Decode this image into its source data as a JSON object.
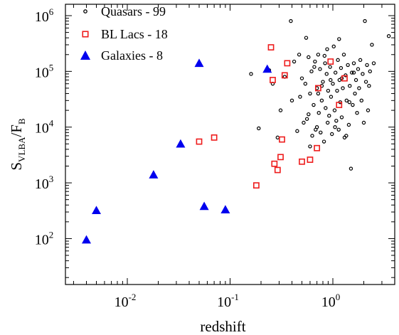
{
  "chart_data": {
    "type": "scatter",
    "xscale": "log",
    "yscale": "log",
    "xlim": [
      0.0025,
      4.0
    ],
    "ylim": [
      15,
      1600000
    ],
    "xlabel": "redshift",
    "ylabel": {
      "base": "S",
      "sub1": "VLBA",
      "mid": "/F",
      "sub2": "B"
    },
    "xticks": [
      {
        "value": 0.01,
        "base": "10",
        "exp": "-2"
      },
      {
        "value": 0.1,
        "base": "10",
        "exp": "-1"
      },
      {
        "value": 1,
        "base": "10",
        "exp": "0"
      }
    ],
    "yticks": [
      {
        "value": 100,
        "base": "10",
        "exp": "2"
      },
      {
        "value": 1000,
        "base": "10",
        "exp": "3"
      },
      {
        "value": 10000,
        "base": "10",
        "exp": "4"
      },
      {
        "value": 100000,
        "base": "10",
        "exp": "5"
      },
      {
        "value": 1000000,
        "base": "10",
        "exp": "6"
      }
    ],
    "grid": false,
    "legend_position": "top-right",
    "series": [
      {
        "name": "Quasars - 99",
        "marker": "circle",
        "color": "#000000",
        "points": [
          [
            0.16,
            90000
          ],
          [
            0.19,
            9500
          ],
          [
            0.24,
            105000
          ],
          [
            0.26,
            60000
          ],
          [
            0.29,
            6500
          ],
          [
            0.31,
            20000
          ],
          [
            0.34,
            80000
          ],
          [
            0.39,
            800000
          ],
          [
            0.4,
            30000
          ],
          [
            0.42,
            150000
          ],
          [
            0.45,
            8500
          ],
          [
            0.47,
            200000
          ],
          [
            0.5,
            75000
          ],
          [
            0.52,
            12000
          ],
          [
            0.54,
            60000
          ],
          [
            0.56,
            14000
          ],
          [
            0.58,
            180000
          ],
          [
            0.6,
            40000
          ],
          [
            0.62,
            100000
          ],
          [
            0.63,
            7000
          ],
          [
            0.65,
            25000
          ],
          [
            0.67,
            150000
          ],
          [
            0.68,
            9000
          ],
          [
            0.7,
            50000
          ],
          [
            0.72,
            200000
          ],
          [
            0.73,
            18000
          ],
          [
            0.75,
            110000
          ],
          [
            0.76,
            8000
          ],
          [
            0.78,
            30000
          ],
          [
            0.8,
            65000
          ],
          [
            0.82,
            5500
          ],
          [
            0.84,
            140000
          ],
          [
            0.85,
            22000
          ],
          [
            0.87,
            90000
          ],
          [
            0.89,
            12000
          ],
          [
            0.9,
            45000
          ],
          [
            0.92,
            16000
          ],
          [
            0.94,
            120000
          ],
          [
            0.96,
            35000
          ],
          [
            0.98,
            7500
          ],
          [
            1.0,
            60000
          ],
          [
            1.02,
            280000
          ],
          [
            1.04,
            20000
          ],
          [
            1.06,
            95000
          ],
          [
            1.08,
            13000
          ],
          [
            1.1,
            45000
          ],
          [
            1.12,
            160000
          ],
          [
            1.14,
            9000
          ],
          [
            1.16,
            70000
          ],
          [
            1.18,
            28000
          ],
          [
            1.2,
            115000
          ],
          [
            1.22,
            15000
          ],
          [
            1.25,
            50000
          ],
          [
            1.28,
            200000
          ],
          [
            1.3,
            6500
          ],
          [
            1.33,
            85000
          ],
          [
            1.36,
            30000
          ],
          [
            1.4,
            130000
          ],
          [
            1.43,
            11000
          ],
          [
            1.46,
            55000
          ],
          [
            1.5,
            1800
          ],
          [
            1.53,
            95000
          ],
          [
            1.56,
            25000
          ],
          [
            1.6,
            140000
          ],
          [
            1.64,
            40000
          ],
          [
            1.68,
            70000
          ],
          [
            1.72,
            18000
          ],
          [
            1.76,
            110000
          ],
          [
            1.8,
            50000
          ],
          [
            1.85,
            160000
          ],
          [
            1.9,
            30000
          ],
          [
            1.95,
            90000
          ],
          [
            2.0,
            12000
          ],
          [
            2.05,
            800000
          ],
          [
            2.1,
            65000
          ],
          [
            2.15,
            130000
          ],
          [
            2.2,
            20000
          ],
          [
            2.3,
            100000
          ],
          [
            2.4,
            300000
          ],
          [
            2.5,
            140000
          ],
          [
            0.55,
            400000
          ],
          [
            0.48,
            35000
          ],
          [
            0.6,
            4500
          ],
          [
            0.88,
            250000
          ],
          [
            1.15,
            380000
          ],
          [
            1.35,
            7000
          ],
          [
            0.72,
            40000
          ],
          [
            0.66,
            120000
          ],
          [
            0.78,
            55000
          ],
          [
            0.95,
            70000
          ],
          [
            1.05,
            10000
          ],
          [
            1.22,
            75000
          ],
          [
            0.58,
            17000
          ],
          [
            0.83,
            190000
          ],
          [
            0.7,
            10000
          ],
          [
            1.45,
            28000
          ],
          [
            1.6,
            95000
          ],
          [
            2.25,
            55000
          ],
          [
            3.5,
            430000
          ]
        ]
      },
      {
        "name": "BL Lacs - 18",
        "marker": "square",
        "color": "#ee1c1c",
        "points": [
          [
            0.05,
            5500
          ],
          [
            0.07,
            6500
          ],
          [
            0.18,
            900
          ],
          [
            0.25,
            270000
          ],
          [
            0.26,
            70000
          ],
          [
            0.27,
            2200
          ],
          [
            0.29,
            1700
          ],
          [
            0.31,
            2900
          ],
          [
            0.32,
            6000
          ],
          [
            0.34,
            85000
          ],
          [
            0.36,
            140000
          ],
          [
            0.5,
            2400
          ],
          [
            0.6,
            2600
          ],
          [
            0.7,
            4200
          ],
          [
            0.72,
            50000
          ],
          [
            0.95,
            150000
          ],
          [
            1.15,
            25000
          ],
          [
            1.3,
            75000
          ]
        ]
      },
      {
        "name": "Galaxies - 8",
        "marker": "triangle",
        "color": "#0000ee",
        "points": [
          [
            0.004,
            95
          ],
          [
            0.005,
            320
          ],
          [
            0.018,
            1400
          ],
          [
            0.033,
            5000
          ],
          [
            0.05,
            140000
          ],
          [
            0.056,
            380
          ],
          [
            0.09,
            330
          ],
          [
            0.23,
            110000
          ]
        ]
      }
    ]
  }
}
